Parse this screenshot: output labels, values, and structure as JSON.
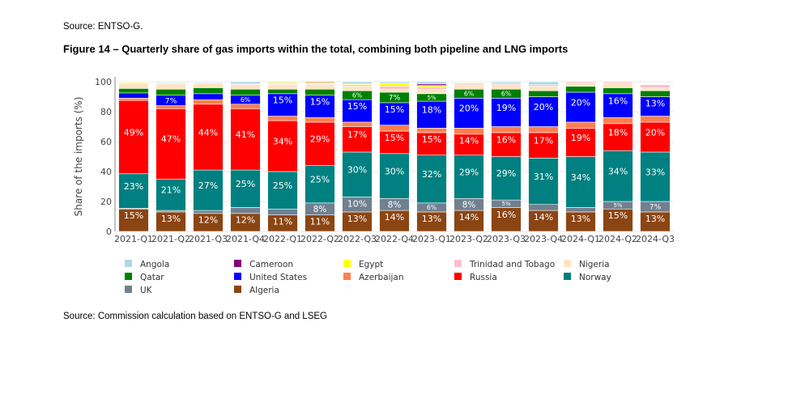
{
  "source_top": "Source: ENTSO-G.",
  "figure_title": "Figure 14 – Quarterly share of gas imports within the total, combining both pipeline and LNG imports",
  "source_bottom": "Source: Commission calculation based on ENTSO-G and LSEG",
  "chart_data": {
    "type": "bar",
    "stacked": true,
    "title": "",
    "xlabel": "",
    "ylabel": "Share of the imports (%)",
    "ylim": [
      0,
      100
    ],
    "yticks": [
      0,
      20,
      40,
      60,
      80,
      100
    ],
    "grid": true,
    "legend_placement": "bottom",
    "categories": [
      "2021-Q1",
      "2021-Q2",
      "2021-Q3",
      "2021-Q4",
      "2022-Q1",
      "2022-Q2",
      "2022-Q3",
      "2022-Q4",
      "2023-Q1",
      "2023-Q2",
      "2023-Q3",
      "2023-Q4",
      "2024-Q1",
      "2024-Q2",
      "2024-Q3"
    ],
    "series": [
      {
        "name": "Algeria",
        "color": "#8b4513",
        "values": [
          15,
          13,
          12,
          12,
          11,
          11,
          13,
          14,
          13,
          14,
          16,
          14,
          13,
          15,
          13
        ]
      },
      {
        "name": "UK",
        "color": "#708090",
        "values": [
          0.5,
          1,
          2,
          4,
          4,
          8,
          10,
          8,
          6,
          8,
          5,
          4,
          3,
          5,
          7
        ]
      },
      {
        "name": "Norway",
        "color": "#008080",
        "values": [
          23,
          21,
          27,
          25,
          25,
          25,
          30,
          30,
          32,
          29,
          29,
          31,
          34,
          34,
          33
        ]
      },
      {
        "name": "Russia",
        "color": "#ff0000",
        "values": [
          49,
          47,
          44,
          41,
          34,
          29,
          17,
          15,
          15,
          14,
          16,
          17,
          19,
          18,
          20
        ]
      },
      {
        "name": "Azerbaijan",
        "color": "#ff7f50",
        "values": [
          1.5,
          2,
          3,
          3,
          3,
          3,
          3,
          4,
          3,
          4,
          4,
          4,
          4,
          4,
          4
        ]
      },
      {
        "name": "United States",
        "color": "#0000ff",
        "values": [
          3.5,
          7,
          4,
          6,
          15,
          15,
          15,
          15,
          18,
          20,
          19,
          20,
          20,
          16,
          13
        ]
      },
      {
        "name": "Qatar",
        "color": "#008000",
        "values": [
          3,
          4,
          4,
          4,
          3,
          4,
          6,
          7,
          5,
          6,
          6,
          4,
          4,
          4,
          4
        ]
      },
      {
        "name": "Nigeria",
        "color": "#ffe4c4",
        "values": [
          3.5,
          3.5,
          3,
          3,
          3,
          3,
          3,
          2,
          3,
          3,
          3,
          3,
          2,
          3,
          2
        ]
      },
      {
        "name": "Trinidad and Tobago",
        "color": "#ffc0cb",
        "values": [
          0.5,
          0.5,
          0.5,
          0.5,
          0.5,
          0.5,
          1,
          2,
          1.5,
          1,
          1,
          1,
          1,
          1,
          2
        ]
      },
      {
        "name": "Egypt",
        "color": "#ffff00",
        "values": [
          0.5,
          0,
          0,
          0,
          1,
          1,
          0.5,
          2,
          1,
          0.5,
          0,
          0,
          0,
          0,
          0
        ]
      },
      {
        "name": "Cameroon",
        "color": "#800080",
        "values": [
          0,
          0,
          0,
          0,
          0,
          0.5,
          0,
          0,
          1,
          0,
          0,
          0,
          0,
          0,
          0
        ]
      },
      {
        "name": "Angola",
        "color": "#add8e6",
        "values": [
          0,
          0.5,
          0.5,
          1.5,
          0.5,
          0,
          1.5,
          1,
          1.5,
          0.5,
          1,
          2,
          0,
          0,
          0
        ]
      }
    ],
    "legend_order": [
      "Angola",
      "Cameroon",
      "Egypt",
      "Trinidad and Tobago",
      "Nigeria",
      "Qatar",
      "United States",
      "Azerbaijan",
      "Russia",
      "Norway",
      "UK",
      "Algeria"
    ]
  }
}
